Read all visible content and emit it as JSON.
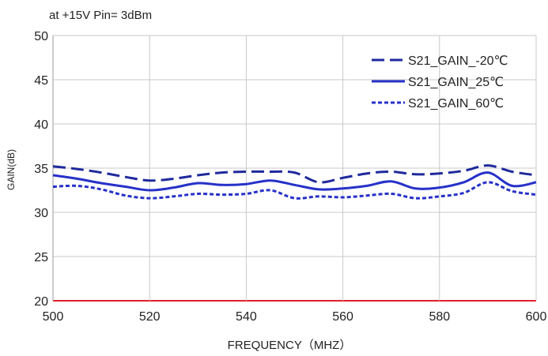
{
  "chart_data": {
    "type": "line",
    "title": "at +15V Pin= 3dBm",
    "xlabel": "FREQUENCY（MHZ）",
    "ylabel": "GAIN(dB)",
    "xlim": [
      500,
      600
    ],
    "ylim": [
      20,
      50
    ],
    "xticks": [
      "500",
      "520",
      "540",
      "560",
      "580",
      "600"
    ],
    "yticks": [
      "20",
      "25",
      "30",
      "35",
      "40",
      "45",
      "50"
    ],
    "grid": true,
    "legend_position": "top-right",
    "series": [
      {
        "name": "S21_GAIN_-20℃",
        "style": "dashed",
        "color": "#1f2a9c",
        "x": [
          500,
          505,
          510,
          515,
          520,
          525,
          530,
          535,
          540,
          545,
          550,
          555,
          560,
          565,
          570,
          575,
          580,
          585,
          590,
          595,
          600
        ],
        "y": [
          35.2,
          34.9,
          34.5,
          34.0,
          33.6,
          33.8,
          34.2,
          34.5,
          34.6,
          34.6,
          34.5,
          33.4,
          33.9,
          34.4,
          34.6,
          34.3,
          34.4,
          34.7,
          35.3,
          34.6,
          34.2
        ]
      },
      {
        "name": "S21_GAIN_25℃",
        "style": "solid",
        "color": "#2631c9",
        "x": [
          500,
          505,
          510,
          515,
          520,
          525,
          530,
          535,
          540,
          545,
          550,
          555,
          560,
          565,
          570,
          575,
          580,
          585,
          590,
          595,
          600
        ],
        "y": [
          34.2,
          33.8,
          33.3,
          32.9,
          32.5,
          32.8,
          33.3,
          33.1,
          33.2,
          33.6,
          33.1,
          32.6,
          32.7,
          33.0,
          33.5,
          32.7,
          32.8,
          33.4,
          34.5,
          33.0,
          33.4
        ]
      },
      {
        "name": "S21_GAIN_60℃",
        "style": "dotted",
        "color": "#2631c9",
        "x": [
          500,
          505,
          510,
          515,
          520,
          525,
          530,
          535,
          540,
          545,
          550,
          555,
          560,
          565,
          570,
          575,
          580,
          585,
          590,
          595,
          600
        ],
        "y": [
          32.9,
          33.0,
          32.6,
          31.9,
          31.6,
          31.8,
          32.1,
          32.0,
          32.1,
          32.5,
          31.6,
          31.8,
          31.7,
          31.9,
          32.1,
          31.6,
          31.8,
          32.2,
          33.4,
          32.4,
          32.0
        ]
      }
    ]
  }
}
